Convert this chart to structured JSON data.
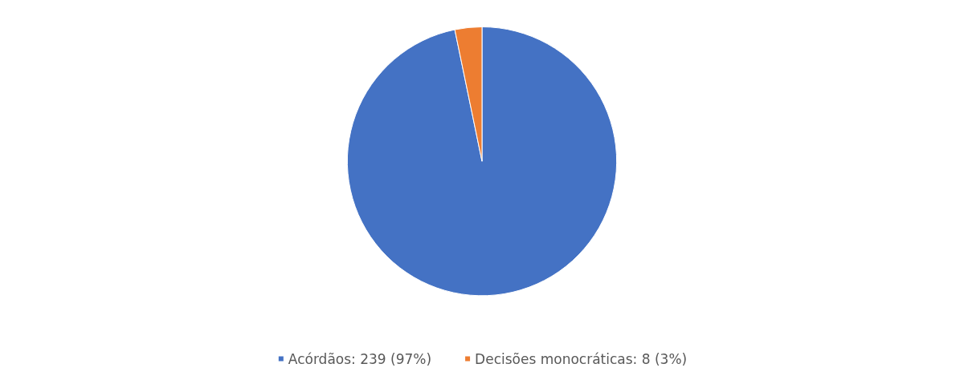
{
  "chart_data": {
    "type": "pie",
    "categories": [
      "Acórdãos: 239 (97%)",
      "Decisões monocráticas: 8 (3%)"
    ],
    "values": [
      239,
      8
    ],
    "colors": [
      "#4472c4",
      "#ed7d31"
    ],
    "legend": "bottom"
  }
}
